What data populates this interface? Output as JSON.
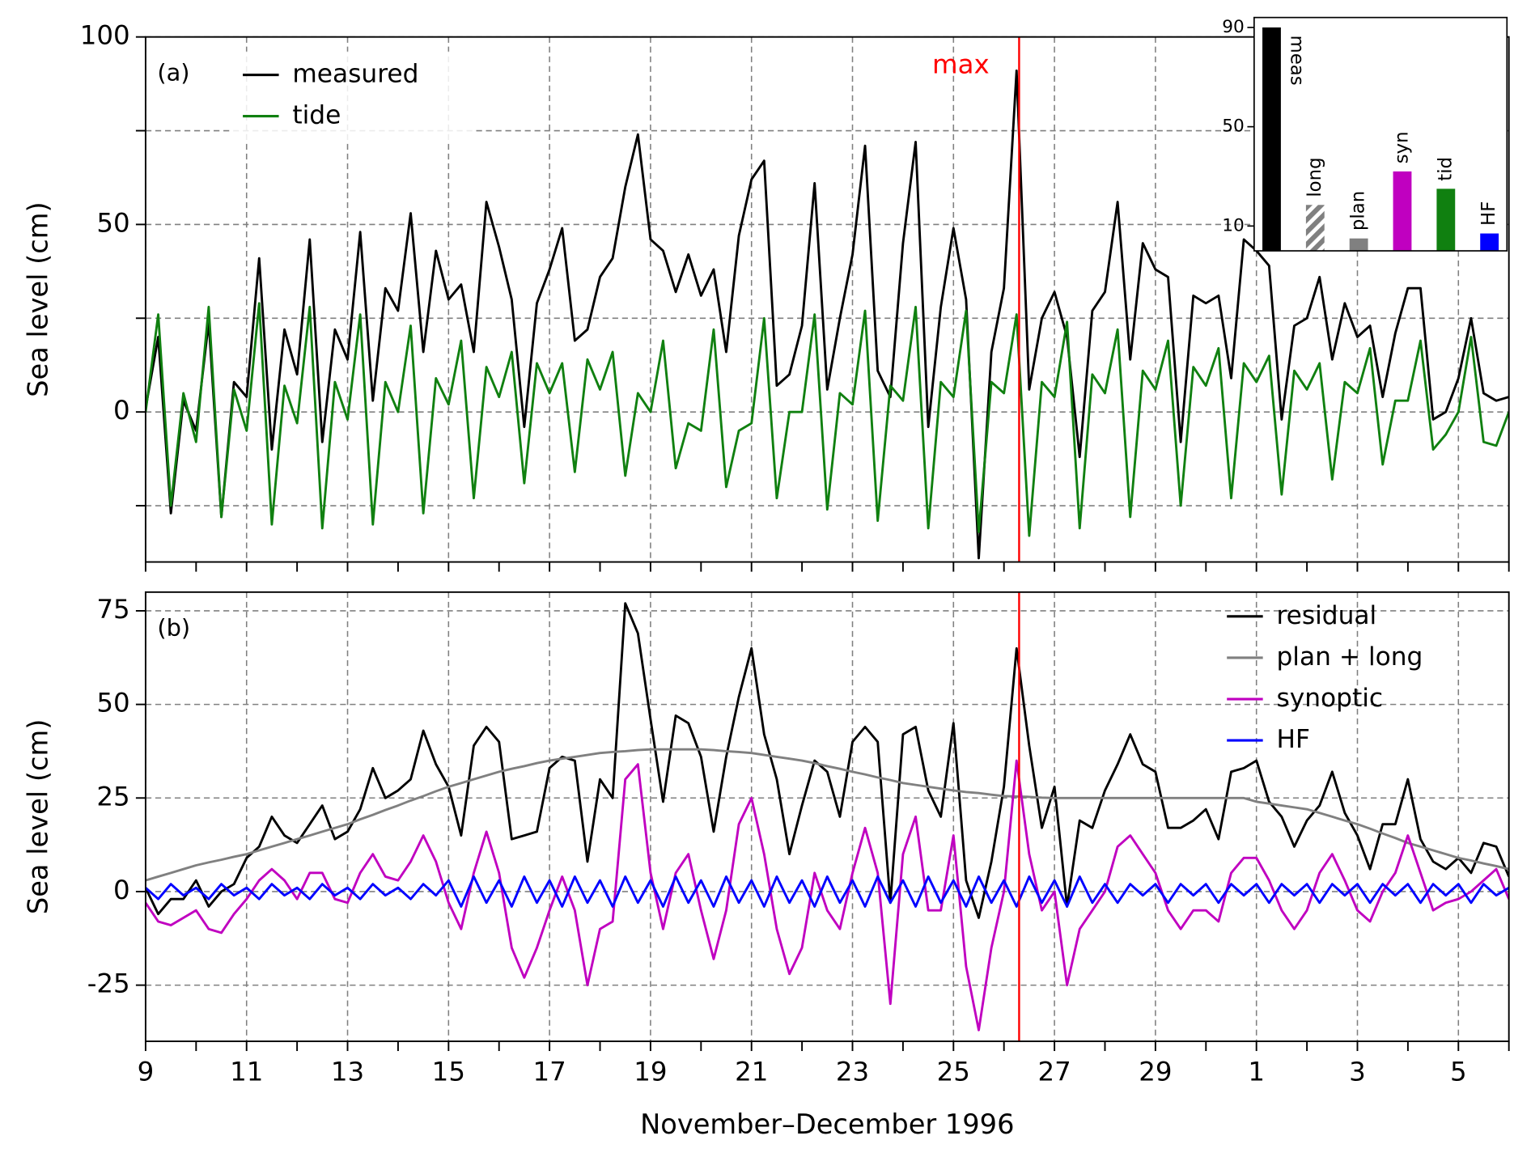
{
  "chart_data": [
    {
      "type": "line",
      "panel_label": "(a)",
      "ylabel": "Sea level (cm)",
      "xlim": [
        9,
        36
      ],
      "ylim": [
        -40,
        100
      ],
      "yticks": [
        0,
        50,
        100
      ],
      "minor_yticks": [
        -25,
        25,
        75
      ],
      "grid": true,
      "legend": "upper left",
      "annotations": [
        {
          "text": "max",
          "x": 26.3,
          "color": "#ff0000"
        }
      ],
      "x": [
        9,
        9.25,
        9.5,
        9.75,
        10,
        10.25,
        10.5,
        10.75,
        11,
        11.25,
        11.5,
        11.75,
        12,
        12.25,
        12.5,
        12.75,
        13,
        13.25,
        13.5,
        13.75,
        14,
        14.25,
        14.5,
        14.75,
        15,
        15.25,
        15.5,
        15.75,
        16,
        16.25,
        16.5,
        16.75,
        17,
        17.25,
        17.5,
        17.75,
        18,
        18.25,
        18.5,
        18.75,
        19,
        19.25,
        19.5,
        19.75,
        20,
        20.25,
        20.5,
        20.75,
        21,
        21.25,
        21.5,
        21.75,
        22,
        22.25,
        22.5,
        22.75,
        23,
        23.25,
        23.5,
        23.75,
        24,
        24.25,
        24.5,
        24.75,
        25,
        25.25,
        25.5,
        25.75,
        26,
        26.25,
        26.5,
        26.75,
        27,
        27.25,
        27.5,
        27.75,
        28,
        28.25,
        28.5,
        28.75,
        29,
        29.25,
        29.5,
        29.75,
        30,
        30.25,
        30.5,
        30.75,
        31,
        31.25,
        31.5,
        31.75,
        32,
        32.25,
        32.5,
        32.75,
        33,
        33.25,
        33.5,
        33.75,
        34,
        34.25,
        34.5,
        34.75,
        35,
        35.25,
        35.5,
        35.75,
        36
      ],
      "series": [
        {
          "name": "measured",
          "color": "#000000",
          "values": [
            1,
            20,
            -27,
            3,
            -5,
            24,
            -28,
            8,
            4,
            41,
            -10,
            22,
            10,
            46,
            -8,
            22,
            14,
            48,
            3,
            33,
            27,
            53,
            16,
            43,
            30,
            34,
            16,
            56,
            44,
            30,
            -4,
            29,
            38,
            49,
            19,
            22,
            36,
            41,
            60,
            74,
            46,
            43,
            32,
            42,
            31,
            38,
            16,
            47,
            62,
            67,
            7,
            10,
            23,
            61,
            6,
            25,
            42,
            71,
            11,
            4,
            45,
            72,
            -4,
            28,
            49,
            30,
            -39,
            16,
            33,
            91,
            6,
            25,
            32,
            20,
            -12,
            27,
            32,
            56,
            14,
            45,
            38,
            36,
            -8,
            31,
            29,
            31,
            9,
            46,
            43,
            39,
            -2,
            23,
            25,
            36,
            14,
            29,
            20,
            23,
            4,
            21,
            33,
            33,
            -2,
            0,
            9,
            25,
            5,
            3,
            4
          ]
        },
        {
          "name": "tide",
          "color": "#108010",
          "values": [
            0,
            26,
            -25,
            5,
            -8,
            28,
            -28,
            6,
            -5,
            29,
            -30,
            7,
            -3,
            28,
            -31,
            8,
            -2,
            26,
            -30,
            8,
            0,
            23,
            -27,
            9,
            2,
            19,
            -23,
            12,
            4,
            16,
            -19,
            13,
            5,
            13,
            -16,
            14,
            6,
            16,
            -17,
            5,
            0,
            19,
            -15,
            -3,
            -5,
            22,
            -20,
            -5,
            -3,
            25,
            -23,
            0,
            0,
            26,
            -26,
            5,
            2,
            27,
            -29,
            7,
            3,
            28,
            -31,
            8,
            4,
            27,
            -32,
            8,
            5,
            26,
            -33,
            8,
            4,
            24,
            -31,
            10,
            5,
            22,
            -28,
            11,
            6,
            19,
            -25,
            12,
            7,
            17,
            -23,
            13,
            8,
            15,
            -22,
            11,
            6,
            13,
            -18,
            8,
            5,
            17,
            -14,
            3,
            3,
            19,
            -10,
            -6,
            0,
            20,
            -8,
            -9,
            0
          ]
        }
      ]
    },
    {
      "type": "line",
      "panel_label": "(b)",
      "ylabel": "Sea level (cm)",
      "xlabel": "November–December 1996",
      "xlim": [
        9,
        36
      ],
      "ylim": [
        -40,
        80
      ],
      "yticks": [
        -25,
        0,
        25,
        50,
        75
      ],
      "grid": true,
      "legend": "upper right",
      "xticks": [
        9,
        11,
        13,
        15,
        17,
        19,
        21,
        23,
        25,
        27,
        29,
        {
          "value": 31,
          "label": "1"
        },
        {
          "value": 33,
          "label": "3"
        },
        {
          "value": 35,
          "label": "5"
        }
      ],
      "minor_xticks": [
        10,
        12,
        14,
        16,
        18,
        20,
        22,
        24,
        26,
        28,
        30,
        32,
        34,
        36
      ],
      "x": [
        9,
        9.25,
        9.5,
        9.75,
        10,
        10.25,
        10.5,
        10.75,
        11,
        11.25,
        11.5,
        11.75,
        12,
        12.25,
        12.5,
        12.75,
        13,
        13.25,
        13.5,
        13.75,
        14,
        14.25,
        14.5,
        14.75,
        15,
        15.25,
        15.5,
        15.75,
        16,
        16.25,
        16.5,
        16.75,
        17,
        17.25,
        17.5,
        17.75,
        18,
        18.25,
        18.5,
        18.75,
        19,
        19.25,
        19.5,
        19.75,
        20,
        20.25,
        20.5,
        20.75,
        21,
        21.25,
        21.5,
        21.75,
        22,
        22.25,
        22.5,
        22.75,
        23,
        23.25,
        23.5,
        23.75,
        24,
        24.25,
        24.5,
        24.75,
        25,
        25.25,
        25.5,
        25.75,
        26,
        26.25,
        26.5,
        26.75,
        27,
        27.25,
        27.5,
        27.75,
        28,
        28.25,
        28.5,
        28.75,
        29,
        29.25,
        29.5,
        29.75,
        30,
        30.25,
        30.5,
        30.75,
        31,
        31.25,
        31.5,
        31.75,
        32,
        32.25,
        32.5,
        32.75,
        33,
        33.25,
        33.5,
        33.75,
        34,
        34.25,
        34.5,
        34.75,
        35,
        35.25,
        35.5,
        35.75,
        36
      ],
      "series": [
        {
          "name": "residual",
          "color": "#000000",
          "values": [
            1,
            -6,
            -2,
            -2,
            3,
            -4,
            0,
            2,
            9,
            12,
            20,
            15,
            13,
            18,
            23,
            14,
            16,
            22,
            33,
            25,
            27,
            30,
            43,
            34,
            28,
            15,
            39,
            44,
            40,
            14,
            15,
            16,
            33,
            36,
            35,
            8,
            30,
            25,
            77,
            69,
            46,
            24,
            47,
            45,
            36,
            16,
            36,
            52,
            65,
            42,
            30,
            10,
            23,
            35,
            32,
            20,
            40,
            44,
            40,
            -3,
            42,
            44,
            27,
            20,
            45,
            3,
            -7,
            8,
            28,
            65,
            39,
            17,
            28,
            -4,
            19,
            17,
            27,
            34,
            42,
            34,
            32,
            17,
            17,
            19,
            22,
            14,
            32,
            33,
            35,
            24,
            20,
            12,
            19,
            23,
            32,
            21,
            15,
            6,
            18,
            18,
            30,
            14,
            8,
            6,
            9,
            5,
            13,
            12,
            4
          ]
        },
        {
          "name": "plan + long",
          "color": "#808080",
          "values": [
            3,
            4,
            5,
            6,
            7,
            7.8,
            8.5,
            9.3,
            10,
            11,
            12,
            13,
            14,
            15,
            16,
            17,
            18,
            19.3,
            20.5,
            21.8,
            23,
            24.3,
            25.5,
            26.8,
            28,
            29,
            30,
            31,
            32,
            32.8,
            33.5,
            34.3,
            35,
            35.5,
            36,
            36.5,
            37,
            37.3,
            37.5,
            37.8,
            38,
            38,
            38,
            38,
            38,
            37.8,
            37.5,
            37.3,
            37,
            36.5,
            36,
            35.5,
            35,
            34.3,
            33.5,
            32.8,
            32,
            31.3,
            30.5,
            29.8,
            29,
            28.5,
            28,
            27.5,
            27,
            26.6,
            26.3,
            25.9,
            25.5,
            25.4,
            25.3,
            25.1,
            25,
            25,
            25,
            25,
            25,
            25,
            25,
            25,
            25,
            25,
            25,
            25,
            25,
            25,
            25,
            25,
            24,
            23.5,
            23,
            22.5,
            22,
            21,
            20,
            19,
            18,
            16.8,
            15.5,
            14.3,
            13,
            12,
            11,
            10,
            9,
            8.3,
            7.5,
            6.8,
            6
          ]
        },
        {
          "name": "synoptic",
          "color": "#c000c0",
          "values": [
            -3,
            -8,
            -9,
            -7,
            -5,
            -10,
            -11,
            -6,
            -2,
            3,
            6,
            3,
            -2,
            5,
            5,
            -2,
            -3,
            5,
            10,
            4,
            3,
            8,
            15,
            8,
            -3,
            -10,
            5,
            16,
            5,
            -15,
            -23,
            -15,
            -5,
            4,
            -5,
            -25,
            -10,
            -8,
            30,
            34,
            5,
            -10,
            5,
            10,
            -5,
            -18,
            -5,
            18,
            25,
            10,
            -10,
            -22,
            -15,
            5,
            -5,
            -10,
            5,
            17,
            5,
            -30,
            10,
            20,
            -5,
            -5,
            15,
            -20,
            -37,
            -15,
            0,
            35,
            10,
            -5,
            0,
            -25,
            -10,
            -5,
            0,
            12,
            15,
            10,
            5,
            -5,
            -10,
            -5,
            -5,
            -8,
            5,
            9,
            9,
            3,
            -5,
            -10,
            -5,
            5,
            10,
            3,
            -5,
            -8,
            0,
            5,
            15,
            5,
            -5,
            -3,
            -2,
            0,
            3,
            6,
            -2
          ]
        },
        {
          "name": "HF",
          "color": "#0000ff",
          "values": [
            1,
            -2,
            2,
            -1,
            1,
            -2,
            2,
            -1,
            1,
            -2,
            2,
            -1,
            1,
            -2,
            2,
            -1,
            1,
            -2,
            2,
            -1,
            1,
            -2,
            2,
            -1,
            3,
            -4,
            4,
            -3,
            3,
            -4,
            4,
            -3,
            3,
            -4,
            4,
            -3,
            3,
            -4,
            4,
            -3,
            3,
            -4,
            4,
            -3,
            3,
            -4,
            4,
            -3,
            3,
            -4,
            4,
            -3,
            3,
            -4,
            4,
            -3,
            3,
            -4,
            4,
            -3,
            3,
            -4,
            4,
            -3,
            3,
            -4,
            4,
            -3,
            3,
            -4,
            4,
            -3,
            3,
            -4,
            4,
            -3,
            2,
            -3,
            2,
            -1,
            2,
            -3,
            2,
            -1,
            2,
            -3,
            2,
            -1,
            2,
            -3,
            2,
            -1,
            2,
            -3,
            2,
            -1,
            2,
            -3,
            2,
            -1,
            2,
            -3,
            2,
            -1,
            2,
            -3,
            2,
            -1,
            1
          ]
        }
      ]
    },
    {
      "type": "bar",
      "categories": [
        "meas",
        "long",
        "plan",
        "syn",
        "tid",
        "HF"
      ],
      "values": [
        90,
        18.5,
        5,
        32,
        25,
        7
      ],
      "colors": [
        "#000000",
        "#808080",
        "#808080",
        "#c000c0",
        "#108010",
        "#0000ff"
      ],
      "hatch": [
        false,
        true,
        false,
        false,
        false,
        false
      ],
      "ylim": [
        0,
        94
      ],
      "yticks": [
        10,
        50,
        90
      ]
    }
  ]
}
